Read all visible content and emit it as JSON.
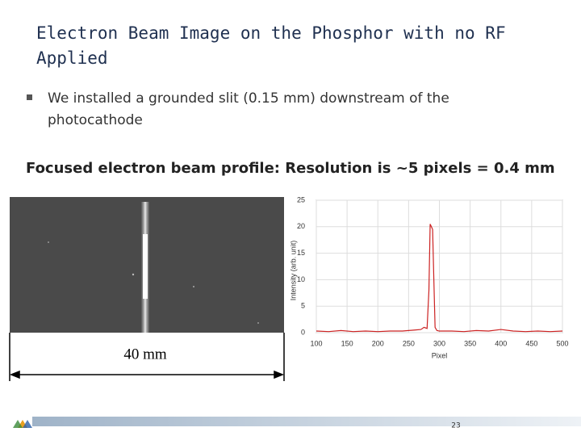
{
  "slide": {
    "title_lines": [
      "Electron Beam Image on the Phosphor  with no RF",
      "Applied"
    ],
    "bullet_lines": [
      "We installed a grounded slit (0.15 mm) downstream of the",
      "photocathode"
    ],
    "heading": "Focused electron beam profile: Resolution is ~5 pixels = 0.4 mm",
    "scale_label": "40 mm",
    "page_number": "23"
  },
  "chart_data": {
    "type": "line",
    "x_label": "Pixel",
    "y_label": "Intensity (arb. unit)",
    "x": [
      100,
      120,
      140,
      160,
      180,
      200,
      220,
      240,
      260,
      270,
      275,
      280,
      283,
      285,
      287,
      289,
      291,
      293,
      296,
      300,
      320,
      340,
      360,
      380,
      400,
      420,
      440,
      460,
      480,
      500
    ],
    "values": [
      0.3,
      0.2,
      0.4,
      0.2,
      0.3,
      0.2,
      0.3,
      0.3,
      0.5,
      0.6,
      1.0,
      0.8,
      8,
      20.5,
      20,
      19.5,
      10,
      1,
      0.4,
      0.3,
      0.3,
      0.2,
      0.4,
      0.3,
      0.6,
      0.3,
      0.2,
      0.3,
      0.2,
      0.3
    ],
    "color": "#cc2222",
    "xlim": [
      100,
      500
    ],
    "xticks": [
      100,
      150,
      200,
      250,
      300,
      350,
      400,
      450,
      500
    ],
    "ylim": [
      0,
      25
    ],
    "yticks": [
      0,
      5,
      10,
      15,
      20,
      25
    ],
    "grid": true
  }
}
